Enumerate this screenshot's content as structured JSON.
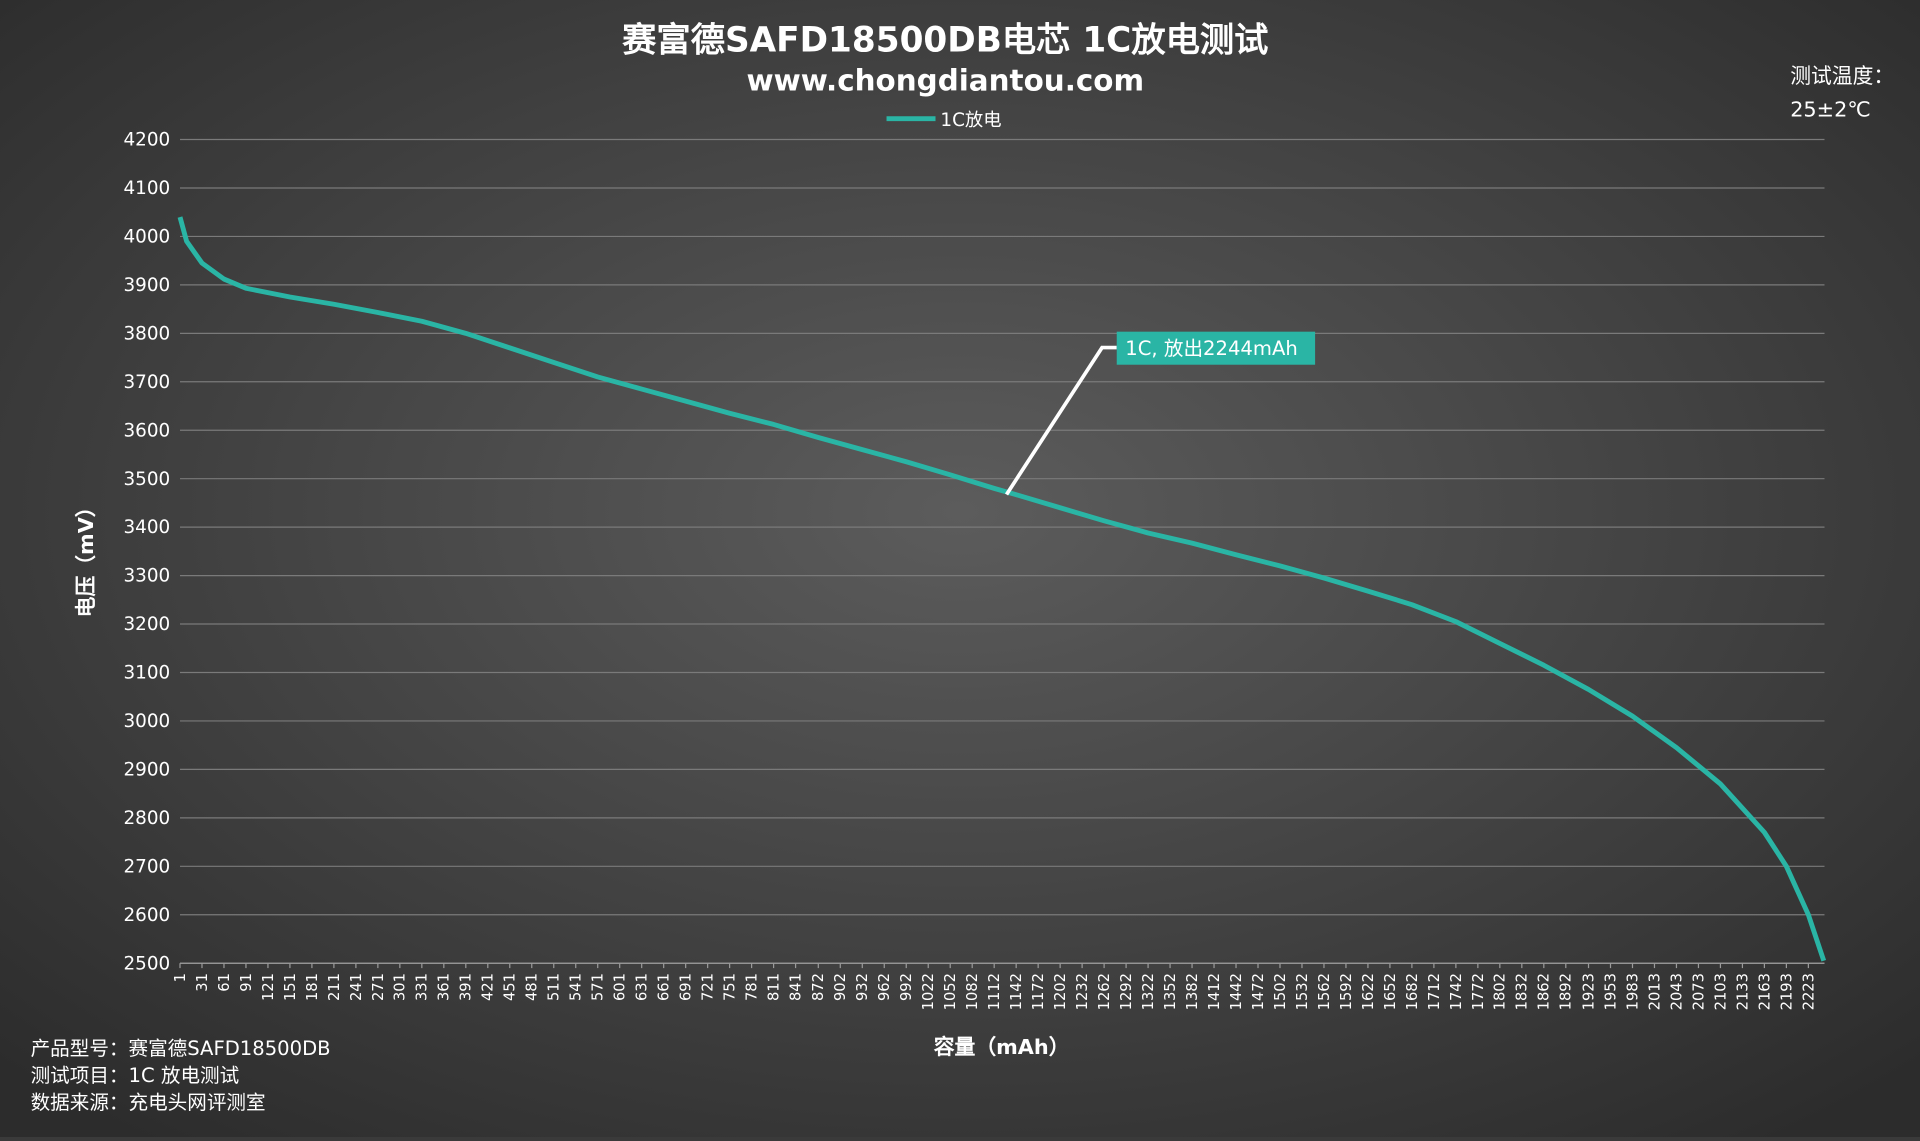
{
  "chart_data": {
    "type": "line",
    "title": "赛富德SAFD18500DB电芯 1C放电测试",
    "subtitle": "www.chongdiantou.com",
    "xlabel": "容量（mAh）",
    "ylabel": "电压（mV）",
    "notes_right": [
      "测试温度：",
      "25±2℃"
    ],
    "notes_left": [
      "产品型号：赛富德SAFD18500DB",
      "测试项目：1C 放电测试",
      "数据来源：充电头网评测室"
    ],
    "annotation": "1C, 放出2244mAh",
    "x": [
      1,
      10,
      31,
      61,
      91,
      151,
      211,
      271,
      331,
      391,
      451,
      511,
      571,
      631,
      691,
      751,
      811,
      872,
      932,
      992,
      1052,
      1112,
      1142,
      1202,
      1262,
      1322,
      1382,
      1442,
      1502,
      1562,
      1622,
      1682,
      1742,
      1802,
      1862,
      1923,
      1983,
      2043,
      2103,
      2163,
      2193,
      2223,
      2244
    ],
    "series": [
      {
        "name": "1C放电",
        "color": "#2ab5a5",
        "values": [
          4040,
          3990,
          3945,
          3912,
          3893,
          3875,
          3860,
          3843,
          3825,
          3800,
          3770,
          3740,
          3710,
          3685,
          3660,
          3635,
          3612,
          3585,
          3560,
          3535,
          3508,
          3480,
          3467,
          3440,
          3413,
          3388,
          3367,
          3343,
          3320,
          3295,
          3268,
          3240,
          3205,
          3160,
          3115,
          3065,
          3010,
          2945,
          2870,
          2770,
          2700,
          2600,
          2505
        ]
      }
    ],
    "xlim": [
      1,
      2245
    ],
    "ylim": [
      2500,
      4200
    ],
    "xticks": [
      1,
      31,
      61,
      91,
      121,
      151,
      181,
      211,
      241,
      271,
      301,
      331,
      361,
      391,
      421,
      451,
      481,
      511,
      541,
      571,
      601,
      631,
      661,
      691,
      721,
      751,
      781,
      811,
      841,
      872,
      902,
      932,
      962,
      992,
      1022,
      1052,
      1082,
      1112,
      1142,
      1172,
      1202,
      1232,
      1262,
      1292,
      1322,
      1352,
      1382,
      1412,
      1442,
      1472,
      1502,
      1532,
      1562,
      1592,
      1622,
      1652,
      1682,
      1712,
      1742,
      1772,
      1802,
      1832,
      1862,
      1892,
      1923,
      1953,
      1983,
      2013,
      2043,
      2073,
      2103,
      2133,
      2163,
      2193,
      2223
    ],
    "yticks": [
      2500,
      2600,
      2700,
      2800,
      2900,
      3000,
      3100,
      3200,
      3300,
      3400,
      3500,
      3600,
      3700,
      3800,
      3900,
      4000,
      4100,
      4200
    ],
    "grid": true
  }
}
